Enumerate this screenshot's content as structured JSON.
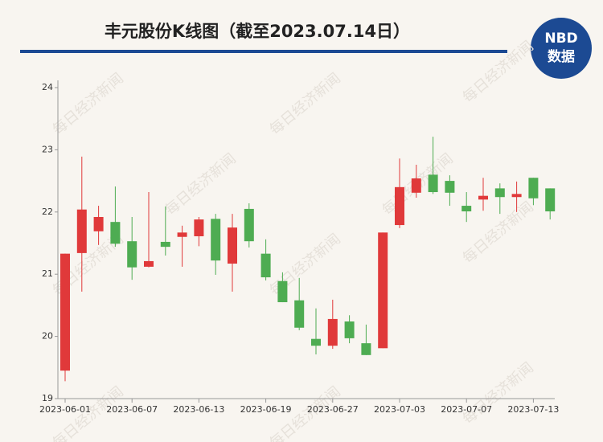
{
  "chart_data": {
    "type": "candlestick",
    "title": "丰元股份K线图（截至2023.07.14日）",
    "logo": {
      "top": "NBD",
      "bottom": "数据"
    },
    "watermark": "每日经济新闻",
    "x": [
      "2023-06-01",
      null,
      null,
      null,
      "2023-06-07",
      null,
      null,
      null,
      "2023-06-13",
      null,
      null,
      null,
      "2023-06-19",
      null,
      null,
      null,
      "2023-06-27",
      null,
      null,
      null,
      "2023-07-03",
      null,
      null,
      null,
      "2023-07-07",
      null,
      null,
      null,
      "2023-07-13",
      null
    ],
    "open": [
      19.45,
      21.34,
      21.69,
      21.84,
      21.53,
      21.12,
      21.52,
      21.6,
      21.61,
      21.89,
      21.17,
      22.05,
      21.33,
      20.89,
      20.58,
      19.96,
      19.85,
      20.24,
      19.89,
      19.81,
      21.79,
      22.31,
      22.6,
      22.5,
      22.1,
      22.2,
      22.38,
      22.24,
      22.55,
      22.38
    ],
    "high": [
      21.33,
      22.89,
      22.1,
      22.41,
      21.92,
      22.32,
      22.09,
      21.78,
      21.92,
      21.97,
      21.97,
      22.14,
      21.56,
      21.03,
      20.94,
      20.45,
      20.59,
      20.34,
      20.19,
      21.67,
      22.86,
      22.76,
      23.21,
      22.59,
      22.32,
      22.55,
      22.46,
      22.49,
      22.55,
      22.38
    ],
    "low": [
      19.28,
      20.72,
      21.47,
      21.44,
      20.91,
      21.11,
      21.3,
      21.12,
      21.45,
      20.99,
      20.72,
      21.43,
      20.9,
      20.55,
      20.1,
      19.71,
      19.8,
      19.89,
      19.7,
      19.81,
      21.74,
      22.23,
      22.29,
      22.1,
      21.84,
      22.02,
      21.97,
      22.0,
      22.11,
      21.88
    ],
    "close": [
      21.33,
      22.04,
      21.92,
      21.49,
      21.11,
      21.21,
      21.44,
      21.67,
      21.88,
      21.22,
      21.75,
      21.53,
      20.95,
      20.55,
      20.14,
      19.85,
      20.28,
      19.97,
      19.7,
      21.67,
      22.4,
      22.54,
      22.32,
      22.31,
      22.01,
      22.26,
      22.24,
      22.29,
      22.22,
      22.01
    ],
    "up_color": "#e0393a",
    "down_color": "#4eac52",
    "ylim": [
      19,
      24
    ],
    "yticks": [
      19,
      20,
      21,
      22,
      23,
      24
    ],
    "grid": false
  }
}
